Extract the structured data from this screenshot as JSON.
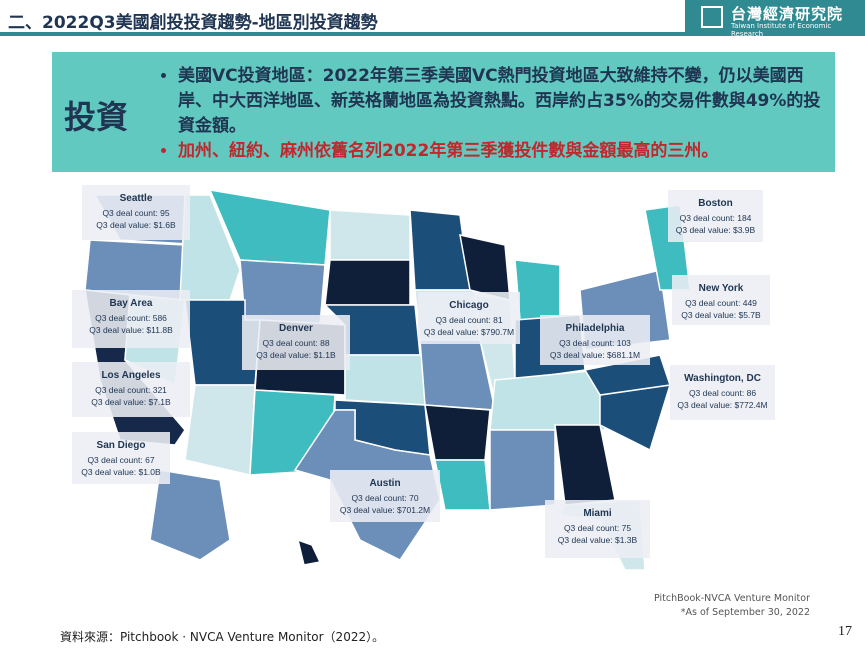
{
  "header": {
    "title": "二、2022Q3美國創投投資趨勢-地區別投資趨勢",
    "logo_cn": "台灣經濟研究院",
    "logo_en": "Taiwan Institute of Economic Research"
  },
  "summary": {
    "label": "投資",
    "bullets": [
      "美國VC投資地區：2022年第三季美國VC熱門投資地區大致維持不變，仍以美國西岸、中大西洋地區、新英格蘭地區為投資熱點。西岸約占35%的交易件數與49%的投資金額。",
      "加州、紐約、麻州依舊名列2022年第三季獲投件數與金額最高的三州。"
    ]
  },
  "callouts": [
    {
      "city": "Seattle",
      "count": "Q3 deal count: 95",
      "value": "Q3 deal value: $1.6B"
    },
    {
      "city": "Boston",
      "count": "Q3 deal count: 184",
      "value": "Q3 deal value: $3.9B"
    },
    {
      "city": "Bay Area",
      "count": "Q3 deal count: 586",
      "value": "Q3 deal value: $11.8B"
    },
    {
      "city": "Chicago",
      "count": "Q3 deal count: 81",
      "value": "Q3 deal value: $790.7M"
    },
    {
      "city": "New York",
      "count": "Q3 deal count: 449",
      "value": "Q3 deal value: $5.7B"
    },
    {
      "city": "Philadelphia",
      "count": "Q3 deal count: 103",
      "value": "Q3 deal value: $681.1M"
    },
    {
      "city": "Denver",
      "count": "Q3 deal count: 88",
      "value": "Q3 deal value: $1.1B"
    },
    {
      "city": "Los Angeles",
      "count": "Q3 deal count: 321",
      "value": "Q3 deal value: $7.1B"
    },
    {
      "city": "Washington, DC",
      "count": "Q3 deal count: 86",
      "value": "Q3 deal value: $772.4M"
    },
    {
      "city": "San Diego",
      "count": "Q3 deal count: 67",
      "value": "Q3 deal value: $1.0B"
    },
    {
      "city": "Austin",
      "count": "Q3 deal count: 70",
      "value": "Q3 deal value: $701.2M"
    },
    {
      "city": "Miami",
      "count": "Q3 deal count: 75",
      "value": "Q3 deal value: $1.3B"
    }
  ],
  "note": [
    "PitchBook-NVCA Venture Monitor",
    "*As of September 30, 2022"
  ],
  "source": "資料來源：Pitchbook · NVCA Venture Monitor（2022）。",
  "page_number": "17"
}
